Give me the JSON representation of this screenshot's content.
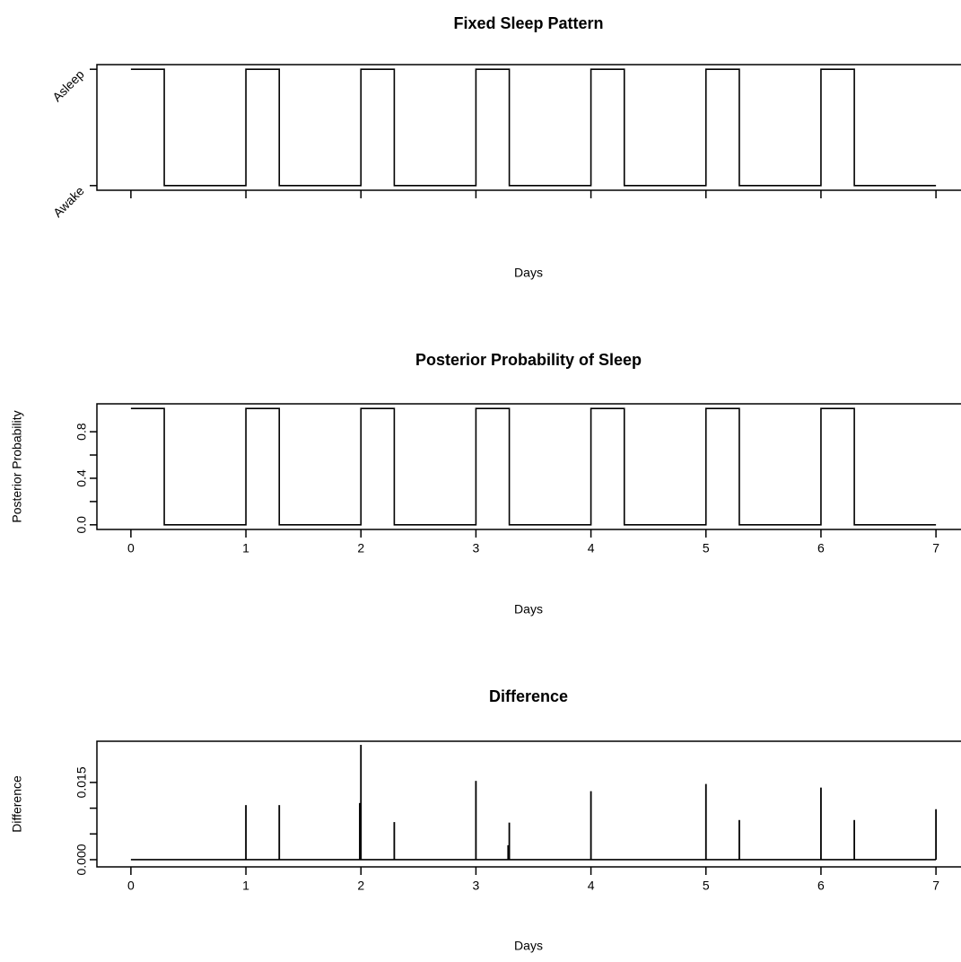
{
  "chart_data": [
    {
      "type": "line",
      "title": "Fixed Sleep Pattern",
      "xlabel": "Days",
      "color": "#000000",
      "x": [
        0,
        0.29,
        0.29,
        1,
        1,
        1.29,
        1.29,
        2,
        2,
        2.29,
        2.29,
        3,
        3,
        3.29,
        3.29,
        4,
        4,
        4.29,
        4.29,
        5,
        5,
        5.29,
        5.29,
        6,
        6,
        6.29,
        6.29,
        7
      ],
      "values": [
        1,
        1,
        0,
        0,
        1,
        1,
        0,
        0,
        1,
        1,
        0,
        0,
        1,
        1,
        0,
        0,
        1,
        1,
        0,
        0,
        1,
        1,
        0,
        0,
        1,
        1,
        0,
        0
      ],
      "xlim": [
        -0.28,
        7.28
      ],
      "xticks": [
        0,
        1,
        2,
        3,
        4,
        5,
        6,
        7
      ],
      "xtick_labels": false,
      "ylim": [
        -0.04,
        1.04
      ],
      "yticks": [
        {
          "value": 0,
          "label": "Awake"
        },
        {
          "value": 1,
          "label": "Asleep"
        }
      ],
      "ytick_rotation": -45
    },
    {
      "type": "line",
      "title": "Posterior Probability of Sleep",
      "xlabel": "Days",
      "ylabel": "Posterior Probability",
      "color": "#000000",
      "x": [
        0,
        0.29,
        0.29,
        1,
        1,
        1.29,
        1.29,
        2,
        2,
        2.29,
        2.29,
        3,
        3,
        3.29,
        3.29,
        4,
        4,
        4.29,
        4.29,
        5,
        5,
        5.29,
        5.29,
        6,
        6,
        6.29,
        6.29,
        7
      ],
      "values": [
        1,
        1,
        0,
        0,
        1,
        1,
        0,
        0,
        1,
        1,
        0,
        0,
        1,
        1,
        0,
        0,
        1,
        1,
        0,
        0,
        1,
        1,
        0,
        0,
        1,
        1,
        0,
        0
      ],
      "xlim": [
        -0.28,
        7.28
      ],
      "xticks": [
        0,
        1,
        2,
        3,
        4,
        5,
        6,
        7
      ],
      "xtick_labels": true,
      "ylim": [
        -0.04,
        1.04
      ],
      "yticks": [
        {
          "value": 0,
          "label": "0.0"
        },
        {
          "value": 0.4,
          "label": "0.4"
        },
        {
          "value": 0.8,
          "label": "0.8"
        }
      ],
      "yminor": [
        0.2,
        0.6
      ],
      "ytick_rotation": -90
    },
    {
      "type": "needle",
      "title": "Difference",
      "xlabel": "Days",
      "ylabel": "Difference",
      "color": "#000000",
      "x": [
        0,
        1,
        1.29,
        1.99,
        2,
        2.29,
        3,
        3.28,
        3.29,
        4,
        5,
        5.29,
        6,
        6.29,
        7
      ],
      "values": [
        0,
        0.0106,
        0.0106,
        0.011,
        0.0223,
        0.0073,
        0.0153,
        0.0028,
        0.0072,
        0.0133,
        0.0147,
        0.0077,
        0.014,
        0.0077,
        0.0098
      ],
      "xlim": [
        -0.28,
        7.28
      ],
      "xticks": [
        0,
        1,
        2,
        3,
        4,
        5,
        6,
        7
      ],
      "xtick_labels": true,
      "ylim": [
        -0.0014,
        0.023
      ],
      "yticks": [
        {
          "value": 0,
          "label": "0.000"
        },
        {
          "value": 0.015,
          "label": "0.015"
        }
      ],
      "yminor": [
        0.005,
        0.01
      ],
      "ytick_rotation": -90
    }
  ]
}
